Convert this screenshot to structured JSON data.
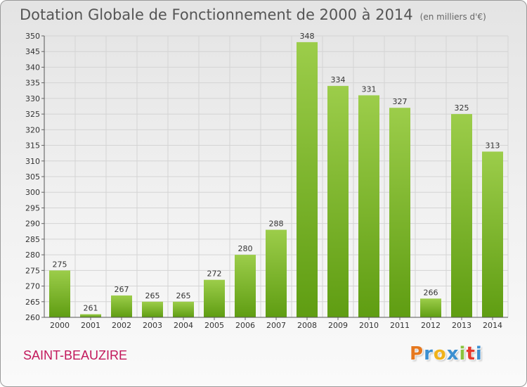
{
  "header": {
    "title": "Dotation Globale de Fonctionnement de 2000 à 2014",
    "subtitle": "(en milliers d'€)"
  },
  "footer": {
    "commune": "SAINT-BEAUZIRE",
    "logo": "Proxiti"
  },
  "colors": {
    "bar_top": "#9ccd4a",
    "bar_bottom": "#5f9d12",
    "grid": "#d4d4d4",
    "commune": "#c2185b",
    "logo_letters": [
      "#e6781e",
      "#3b8fd1",
      "#f0b21a",
      "#3b8fd1",
      "#8ac33c",
      "#e63b2e",
      "#3b8fd1"
    ]
  },
  "chart_data": {
    "type": "bar",
    "title": "Dotation Globale de Fonctionnement de 2000 à 2014",
    "subtitle": "(en milliers d'€)",
    "xlabel": "",
    "ylabel": "",
    "categories": [
      "2000",
      "2001",
      "2002",
      "2003",
      "2004",
      "2005",
      "2006",
      "2007",
      "2008",
      "2009",
      "2010",
      "2011",
      "2012",
      "2013",
      "2014"
    ],
    "values": [
      275,
      261,
      267,
      265,
      265,
      272,
      280,
      288,
      348,
      334,
      331,
      327,
      266,
      325,
      313
    ],
    "ylim": [
      260,
      350
    ],
    "ytick_step": 5,
    "grid": true,
    "data_labels": true
  }
}
